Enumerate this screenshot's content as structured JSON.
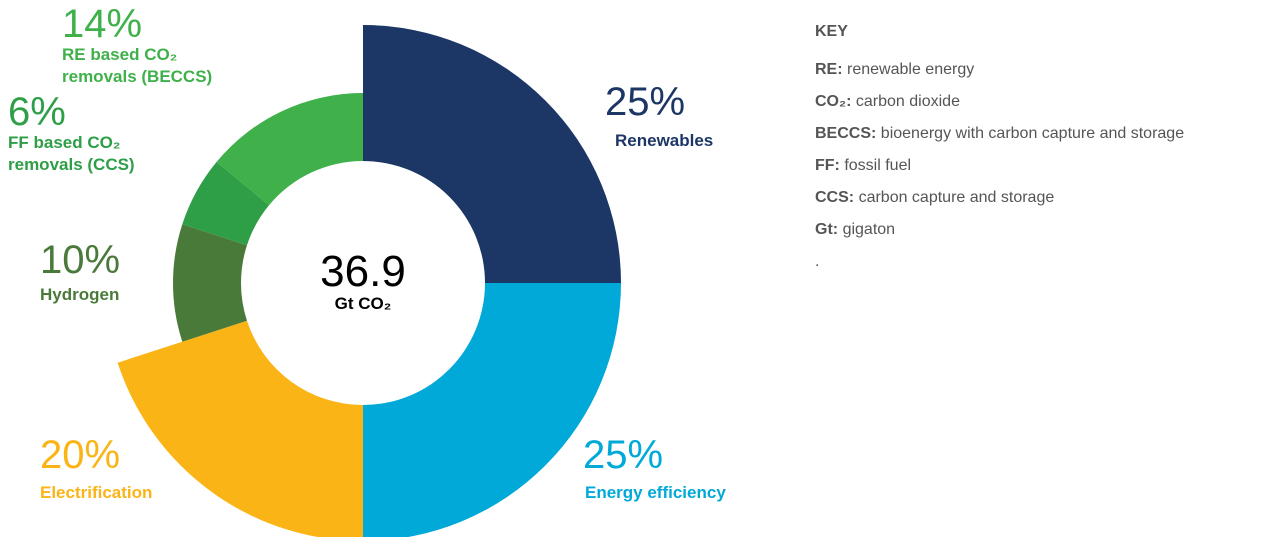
{
  "chart_data": {
    "type": "donut",
    "categories": [
      "Renewables",
      "Energy efficiency",
      "Electrification",
      "Hydrogen",
      "FF based CO₂ removals (CCS)",
      "RE based CO₂ removals (BECCS)"
    ],
    "values": [
      25,
      25,
      20,
      10,
      6,
      14
    ],
    "value_labels": [
      "25%",
      "25%",
      "20%",
      "10%",
      "6%",
      "14%"
    ],
    "colors": [
      "#1c3666",
      "#00a9d8",
      "#fbb416",
      "#4a7a3a",
      "#2e9e47",
      "#3fb04a"
    ],
    "center_value": "36.9",
    "center_label": "Gt CO₂"
  },
  "key": {
    "title": "KEY",
    "items": [
      {
        "term": "RE:",
        "definition": "renewable energy"
      },
      {
        "term": "CO₂:",
        "definition": "carbon dioxide"
      },
      {
        "term": "BECCS:",
        "definition": "bioenergy with carbon capture and storage"
      },
      {
        "term": "FF:",
        "definition": "fossil fuel"
      },
      {
        "term": "CCS:",
        "definition": "carbon capture and storage"
      },
      {
        "term": "Gt:",
        "definition": "gigaton"
      }
    ],
    "footer": "."
  }
}
